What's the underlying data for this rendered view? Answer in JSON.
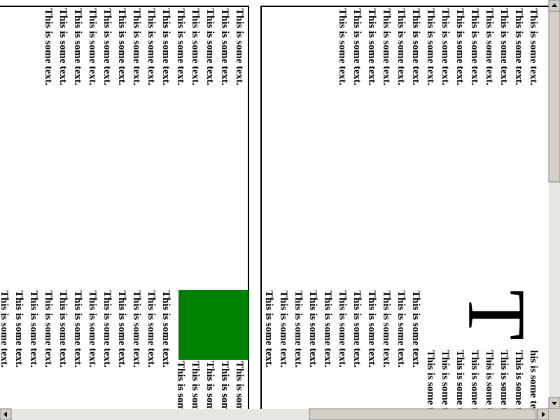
{
  "panels": [
    {
      "top_lines": [
        "This is some text.",
        "This is some text.",
        "This is some text.",
        "This is some text.",
        "This is some text.",
        "This is some text.",
        "This is some text.",
        "This is some text.",
        "This is some text.",
        "This is some text.",
        "This is some text.",
        "This is some text.",
        "This is some text.",
        "This is some text."
      ],
      "bottom_lines": [
        "This is some text.",
        "This is some text.",
        "This is some text.",
        "This is some text.",
        "This is some text.",
        "This is some text.",
        "This is some text.",
        "This is some text.",
        "This is some text.",
        "This is some text.",
        "This is some text.",
        "This is some text.",
        "This is some text.",
        "This is some text.",
        "This is some text.",
        "This is some text.",
        "This is some text."
      ]
    },
    {
      "top_lines": [
        "This is some text.",
        "This is some text.",
        "This is some text.",
        "This is some text.",
        "This is some text.",
        "This is some text.",
        "This is some text.",
        "This is some text.",
        "This is some text.",
        "This is some text.",
        "This is some text.",
        "This is some text.",
        "This is some text.",
        "This is some text."
      ],
      "drop_cap": "T",
      "bottom_lines": [
        "his is some text.",
        "This is some text.",
        "This is some text.",
        "This is some text.",
        "This is some text.",
        "This is some text.",
        "This is some text.",
        "This is some text.",
        "This is some text.",
        "This is some text.",
        "This is some text.",
        "This is some text.",
        "This is some text.",
        "This is some text.",
        "This is some text.",
        "This is some text.",
        "This is some text.",
        "This is some text.",
        "This is some text."
      ]
    }
  ]
}
